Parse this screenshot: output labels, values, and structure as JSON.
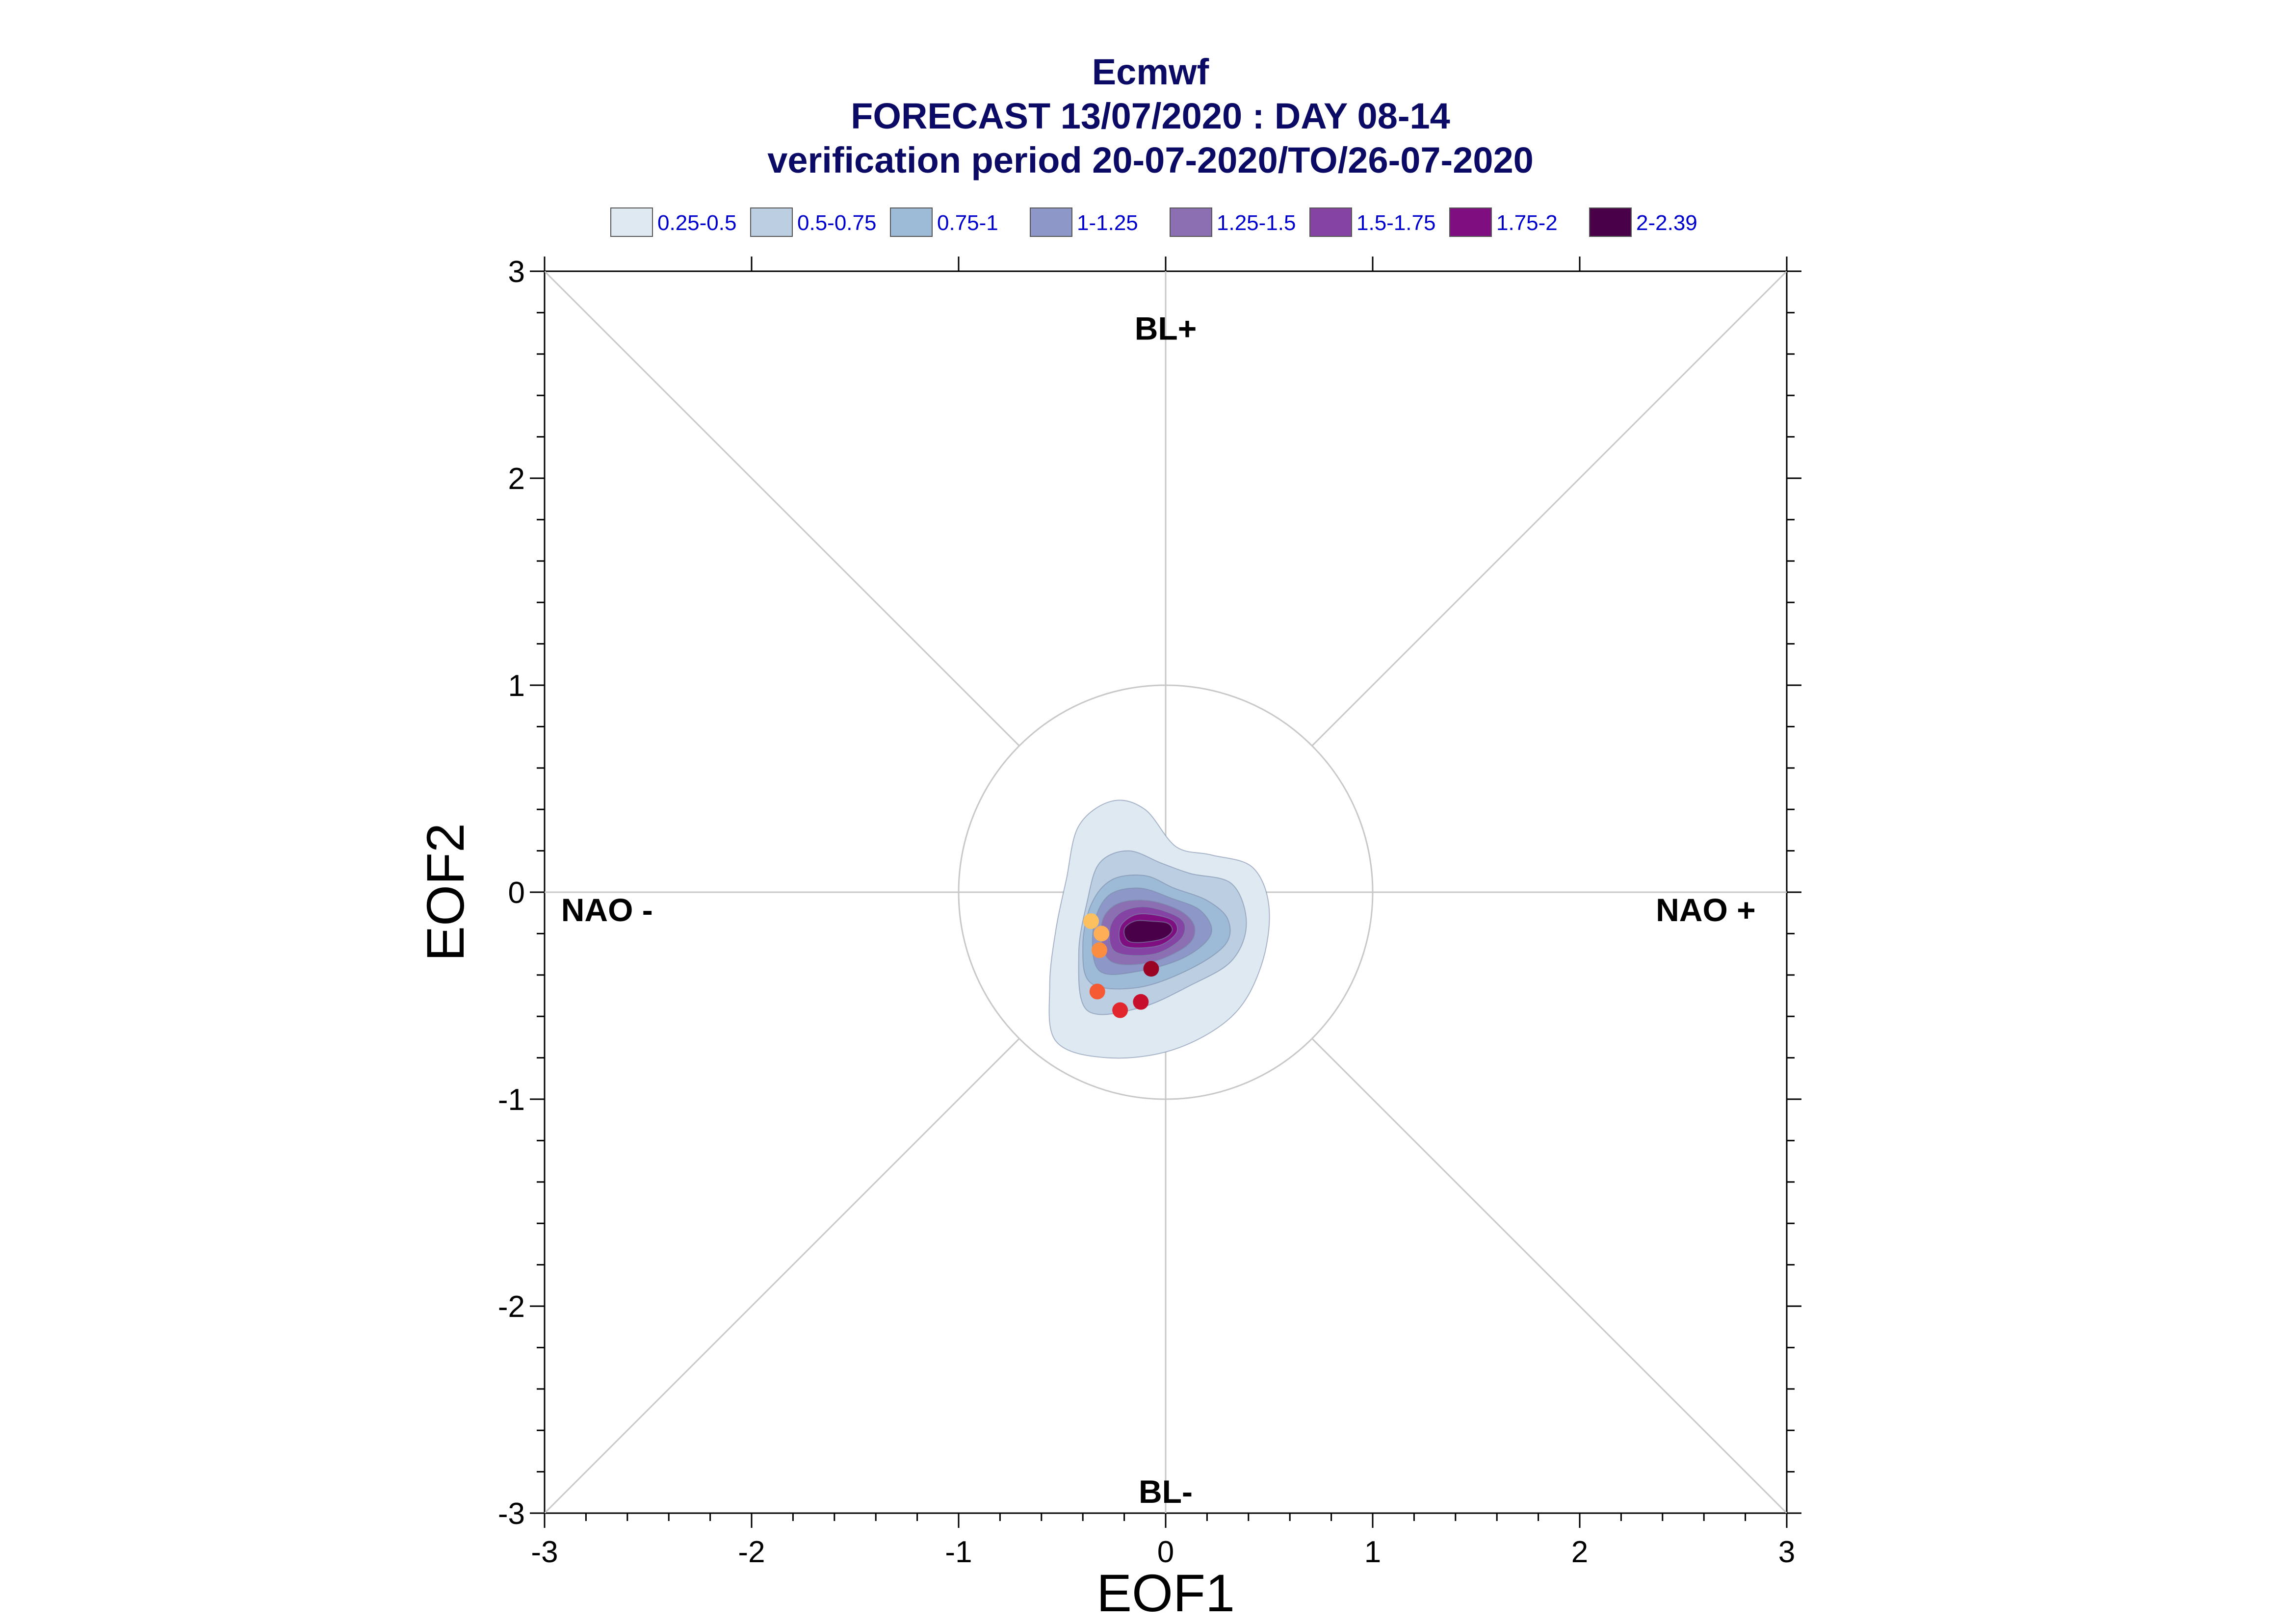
{
  "chart_data": {
    "type": "contour-scatter",
    "title": [
      "Ecmwf",
      "FORECAST 13/07/2020 : DAY 08-14",
      "verification period 20-07-2020/TO/26-07-2020"
    ],
    "xlabel": "EOF1",
    "ylabel": "EOF2",
    "xlim": [
      -3,
      3
    ],
    "ylim": [
      -3,
      3
    ],
    "x_ticks": [
      "-3",
      "-2",
      "-1",
      "0",
      "1",
      "2",
      "3"
    ],
    "y_ticks": [
      "3",
      "2",
      "1",
      "0",
      "-1",
      "-2",
      "-3"
    ],
    "grid": false,
    "legend_position": "top",
    "regime_labels": {
      "top": "BL+",
      "bottom": "BL-",
      "left": "NAO -",
      "right": "NAO +"
    },
    "reference_circle_radius": 1,
    "legend": [
      {
        "label": "0.25-0.5",
        "color": "#dfe9f2"
      },
      {
        "label": "0.5-0.75",
        "color": "#bccfe2"
      },
      {
        "label": "0.75-1",
        "color": "#9dbad7"
      },
      {
        "label": "1-1.25",
        "color": "#8d98c8"
      },
      {
        "label": "1.25-1.5",
        "color": "#8b6fb2"
      },
      {
        "label": "1.5-1.75",
        "color": "#8543a4"
      },
      {
        "label": "1.75-2",
        "color": "#7f0f81"
      },
      {
        "label": "2-2.39",
        "color": "#4a0048"
      }
    ],
    "density_levels": [
      {
        "level": "0.25-0.5",
        "color": "#dfe9f2",
        "outline": [
          [
            -0.53,
            -0.72
          ],
          [
            -0.28,
            -0.8
          ],
          [
            0.04,
            -0.76
          ],
          [
            0.32,
            -0.6
          ],
          [
            0.46,
            -0.36
          ],
          [
            0.5,
            -0.08
          ],
          [
            0.42,
            0.12
          ],
          [
            0.22,
            0.18
          ],
          [
            0.05,
            0.22
          ],
          [
            -0.1,
            0.4
          ],
          [
            -0.26,
            0.44
          ],
          [
            -0.42,
            0.32
          ],
          [
            -0.48,
            0.06
          ],
          [
            -0.53,
            -0.18
          ],
          [
            -0.56,
            -0.45
          ]
        ]
      },
      {
        "level": "0.5-0.75",
        "color": "#bccfe2",
        "outline": [
          [
            -0.38,
            -0.57
          ],
          [
            -0.13,
            -0.56
          ],
          [
            0.12,
            -0.45
          ],
          [
            0.32,
            -0.33
          ],
          [
            0.39,
            -0.15
          ],
          [
            0.32,
            0.04
          ],
          [
            0.12,
            0.09
          ],
          [
            -0.02,
            0.14
          ],
          [
            -0.18,
            0.2
          ],
          [
            -0.32,
            0.14
          ],
          [
            -0.38,
            -0.05
          ],
          [
            -0.42,
            -0.3
          ]
        ]
      },
      {
        "level": "0.75-1",
        "color": "#9dbad7",
        "outline": [
          [
            -0.36,
            -0.44
          ],
          [
            -0.13,
            -0.46
          ],
          [
            0.12,
            -0.37
          ],
          [
            0.29,
            -0.25
          ],
          [
            0.3,
            -0.13
          ],
          [
            0.2,
            -0.04
          ],
          [
            0.04,
            0.02
          ],
          [
            -0.1,
            0.08
          ],
          [
            -0.26,
            0.06
          ],
          [
            -0.36,
            -0.06
          ],
          [
            -0.4,
            -0.26
          ]
        ]
      },
      {
        "level": "1-1.25",
        "color": "#8d98c8",
        "outline": [
          [
            -0.32,
            -0.38
          ],
          [
            -0.12,
            -0.38
          ],
          [
            0.1,
            -0.31
          ],
          [
            0.22,
            -0.2
          ],
          [
            0.17,
            -0.09
          ],
          [
            0.03,
            -0.03
          ],
          [
            -0.13,
            0.02
          ],
          [
            -0.28,
            -0.02
          ],
          [
            -0.35,
            -0.18
          ]
        ]
      },
      {
        "level": "1.25-1.5",
        "color": "#8b6fb2",
        "outline": [
          [
            -0.27,
            -0.33
          ],
          [
            -0.08,
            -0.34
          ],
          [
            0.1,
            -0.26
          ],
          [
            0.14,
            -0.17
          ],
          [
            0.07,
            -0.09
          ],
          [
            -0.09,
            -0.04
          ],
          [
            -0.24,
            -0.06
          ],
          [
            -0.31,
            -0.16
          ]
        ]
      },
      {
        "level": "1.5-1.75",
        "color": "#8543a4",
        "outline": [
          [
            -0.24,
            -0.29
          ],
          [
            -0.06,
            -0.3
          ],
          [
            0.07,
            -0.23
          ],
          [
            0.09,
            -0.15
          ],
          [
            0.02,
            -0.1
          ],
          [
            -0.11,
            -0.07
          ],
          [
            -0.22,
            -0.1
          ],
          [
            -0.27,
            -0.18
          ]
        ]
      },
      {
        "level": "1.75-2",
        "color": "#7f0f81",
        "outline": [
          [
            -0.2,
            -0.26
          ],
          [
            -0.04,
            -0.26
          ],
          [
            0.05,
            -0.2
          ],
          [
            0.04,
            -0.14
          ],
          [
            -0.05,
            -0.11
          ],
          [
            -0.15,
            -0.11
          ],
          [
            -0.22,
            -0.17
          ]
        ]
      },
      {
        "level": "2-2.39",
        "color": "#4a0048",
        "outline": [
          [
            -0.17,
            -0.24
          ],
          [
            -0.03,
            -0.23
          ],
          [
            0.03,
            -0.19
          ],
          [
            0.01,
            -0.15
          ],
          [
            -0.07,
            -0.14
          ],
          [
            -0.15,
            -0.14
          ],
          [
            -0.2,
            -0.18
          ]
        ]
      }
    ],
    "points": [
      {
        "x": -0.36,
        "y": -0.14,
        "color": "#fdc05f"
      },
      {
        "x": -0.31,
        "y": -0.2,
        "color": "#fdae56"
      },
      {
        "x": -0.32,
        "y": -0.28,
        "color": "#fb8d40"
      },
      {
        "x": -0.33,
        "y": -0.48,
        "color": "#f55a34"
      },
      {
        "x": -0.22,
        "y": -0.57,
        "color": "#e2262d"
      },
      {
        "x": -0.12,
        "y": -0.53,
        "color": "#c70e2d"
      },
      {
        "x": -0.07,
        "y": -0.37,
        "color": "#9b0325"
      }
    ]
  }
}
